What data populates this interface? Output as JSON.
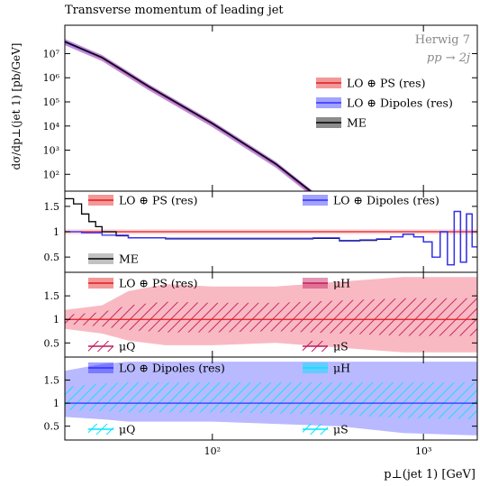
{
  "title": "Transverse momentum of leading jet",
  "generator": "Herwig 7",
  "process": "pp → 2j",
  "xlabel": "p⊥(jet 1) [GeV]",
  "chart_data": {
    "type": "line",
    "x_scale": "log",
    "xlim": [
      20,
      1800
    ],
    "x_ticks": [
      {
        "value": 100,
        "label": "10²"
      },
      {
        "value": 1000,
        "label": "10³"
      }
    ],
    "panels": [
      {
        "id": "main",
        "ylabel": "dσ/dp⊥(jet 1) [pb/GeV]",
        "y_scale": "log",
        "ylim": [
          20,
          150000000.0
        ],
        "y_ticks": [
          {
            "value": 100,
            "label": "10²"
          },
          {
            "value": 1000,
            "label": "10³"
          },
          {
            "value": 10000,
            "label": "10⁴"
          },
          {
            "value": 100000,
            "label": "10⁵"
          },
          {
            "value": 1000000,
            "label": "10⁶"
          },
          {
            "value": 10000000,
            "label": "10⁷"
          }
        ],
        "legend": [
          "LO ⊕ PS (res)",
          "LO ⊕ Dipoles (res)",
          "ME"
        ],
        "series": [
          {
            "name": "LO ⊕ PS (res)",
            "color": "#e41a1c",
            "x": [
              20,
              30,
              50,
              100,
              200,
              300,
              400
            ],
            "y": [
              30000000,
              6500000,
              400000,
              12000,
              250,
              15,
              2
            ]
          },
          {
            "name": "LO ⊕ Dipoles (res)",
            "color": "#3030ff",
            "x": [
              20,
              30,
              50,
              100,
              200,
              300,
              400
            ],
            "y": [
              30000000,
              6800000,
              420000,
              12500,
              260,
              16,
              2
            ]
          },
          {
            "name": "ME",
            "color": "#000000",
            "x": [
              20,
              30,
              50,
              100,
              200,
              300,
              400
            ],
            "y": [
              32000000,
              7000000,
              440000,
              13000,
              270,
              17,
              2
            ]
          }
        ],
        "band_color": "#b07ad0"
      },
      {
        "id": "ratio",
        "ylim": [
          0.2,
          1.8
        ],
        "y_ticks": [
          {
            "value": 0.5,
            "label": "0.5"
          },
          {
            "value": 1,
            "label": "1"
          },
          {
            "value": 1.5,
            "label": "1.5"
          }
        ],
        "legend": [
          "LO ⊕ PS (res)",
          "LO ⊕ Dipoles (res)",
          "ME"
        ],
        "series": [
          {
            "name": "LO ⊕ PS (res)",
            "color": "#e41a1c",
            "x": [
              20,
              1800
            ],
            "y": [
              1.0,
              1.0
            ]
          },
          {
            "name": "ME",
            "color": "#000000",
            "x": [
              20,
              22,
              24,
              26,
              28,
              30,
              35,
              40,
              60,
              100,
              200,
              300,
              400,
              500,
              600,
              700,
              800,
              900,
              1000,
              1100,
              1200,
              1300,
              1400,
              1500,
              1600,
              1700,
              1800
            ],
            "y": [
              1.65,
              1.55,
              1.35,
              1.2,
              1.1,
              1.0,
              0.92,
              0.88,
              0.86,
              0.86,
              0.86,
              0.87,
              0.82,
              0.83,
              0.85,
              0.9,
              0.95,
              0.9,
              0.8,
              0.5,
              1.0,
              0.35,
              1.4,
              0.4,
              1.35,
              0.7,
              1.55
            ]
          },
          {
            "name": "LO ⊕ Dipoles (res)",
            "color": "#3030ff",
            "x": [
              20,
              24,
              30,
              40,
              60,
              100,
              200,
              300,
              400,
              500,
              600,
              700,
              800,
              900,
              1000,
              1100,
              1200,
              1300,
              1400,
              1500,
              1600,
              1700,
              1800
            ],
            "y": [
              1.0,
              0.98,
              0.93,
              0.88,
              0.87,
              0.87,
              0.87,
              0.88,
              0.83,
              0.84,
              0.86,
              0.9,
              0.95,
              0.9,
              0.8,
              0.5,
              1.0,
              0.35,
              1.4,
              0.4,
              1.35,
              0.7,
              1.55
            ]
          }
        ]
      },
      {
        "id": "ps_variations",
        "ylim": [
          0.2,
          2.0
        ],
        "y_ticks": [
          {
            "value": 0.5,
            "label": "0.5"
          },
          {
            "value": 1,
            "label": "1"
          },
          {
            "value": 1.5,
            "label": "1.5"
          }
        ],
        "legend": [
          "LO ⊕ PS (res)",
          "μH",
          "μQ",
          "μS"
        ],
        "colors": {
          "line": "#e41a1c",
          "band": "#f7a8b4",
          "hatch": "#c2185b"
        },
        "band": {
          "x": [
            20,
            30,
            40,
            60,
            100,
            200,
            400,
            800,
            1800
          ],
          "lo": [
            0.8,
            0.7,
            0.55,
            0.45,
            0.45,
            0.5,
            0.4,
            0.3,
            0.3
          ],
          "hi": [
            1.2,
            1.3,
            1.6,
            1.75,
            1.7,
            1.7,
            1.8,
            1.9,
            1.9
          ]
        }
      },
      {
        "id": "dipole_variations",
        "ylim": [
          0.2,
          2.0
        ],
        "y_ticks": [
          {
            "value": 0.5,
            "label": "0.5"
          },
          {
            "value": 1,
            "label": "1"
          },
          {
            "value": 1.5,
            "label": "1.5"
          }
        ],
        "legend": [
          "LO ⊕ Dipoles (res)",
          "μH",
          "μQ",
          "μS"
        ],
        "colors": {
          "line": "#3030ff",
          "band": "#a8a8ff",
          "hatch": "#00e5ff"
        },
        "band": {
          "x": [
            20,
            30,
            40,
            60,
            100,
            200,
            400,
            800,
            1800
          ],
          "lo": [
            0.7,
            0.65,
            0.6,
            0.6,
            0.6,
            0.55,
            0.5,
            0.35,
            0.3
          ],
          "hi": [
            1.7,
            1.85,
            1.9,
            1.9,
            1.9,
            1.9,
            1.9,
            1.9,
            1.9
          ]
        }
      }
    ]
  }
}
